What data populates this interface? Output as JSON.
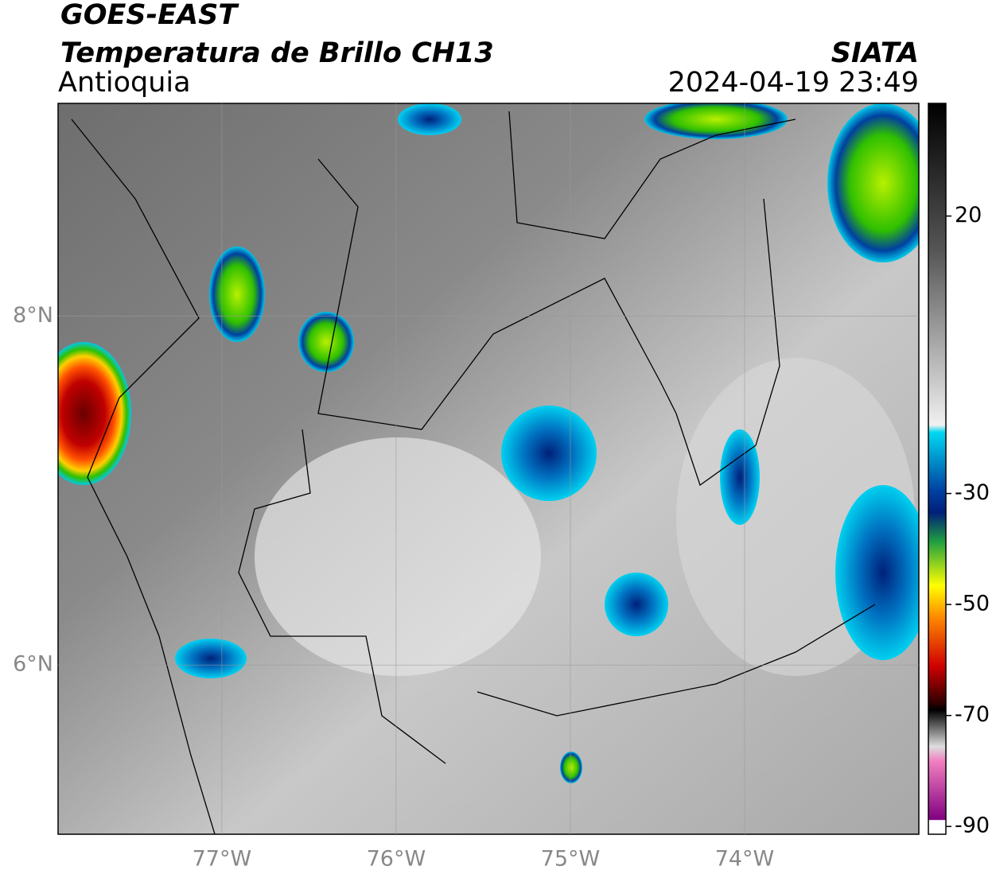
{
  "header": {
    "title": "GOES-EAST",
    "subtitle": "Temperatura de Brillo CH13",
    "region": "Antioquia",
    "source": "SIATA",
    "datetime": "2024-04-19 23:49"
  },
  "map": {
    "xlim": [
      -77.94,
      -73.0
    ],
    "ylim": [
      5.03,
      9.22
    ],
    "xticks": [
      {
        "value": -77,
        "label": "77°W"
      },
      {
        "value": -76,
        "label": "76°W"
      },
      {
        "value": -75,
        "label": "75°W"
      },
      {
        "value": -74,
        "label": "74°W"
      }
    ],
    "yticks": [
      {
        "value": 8,
        "label": "8°N"
      },
      {
        "value": 6,
        "label": "6°N"
      }
    ]
  },
  "colorbar": {
    "lim": [
      -91.4,
      40.3
    ],
    "ticks": [
      20,
      -30,
      -50,
      -70,
      -90
    ]
  }
}
